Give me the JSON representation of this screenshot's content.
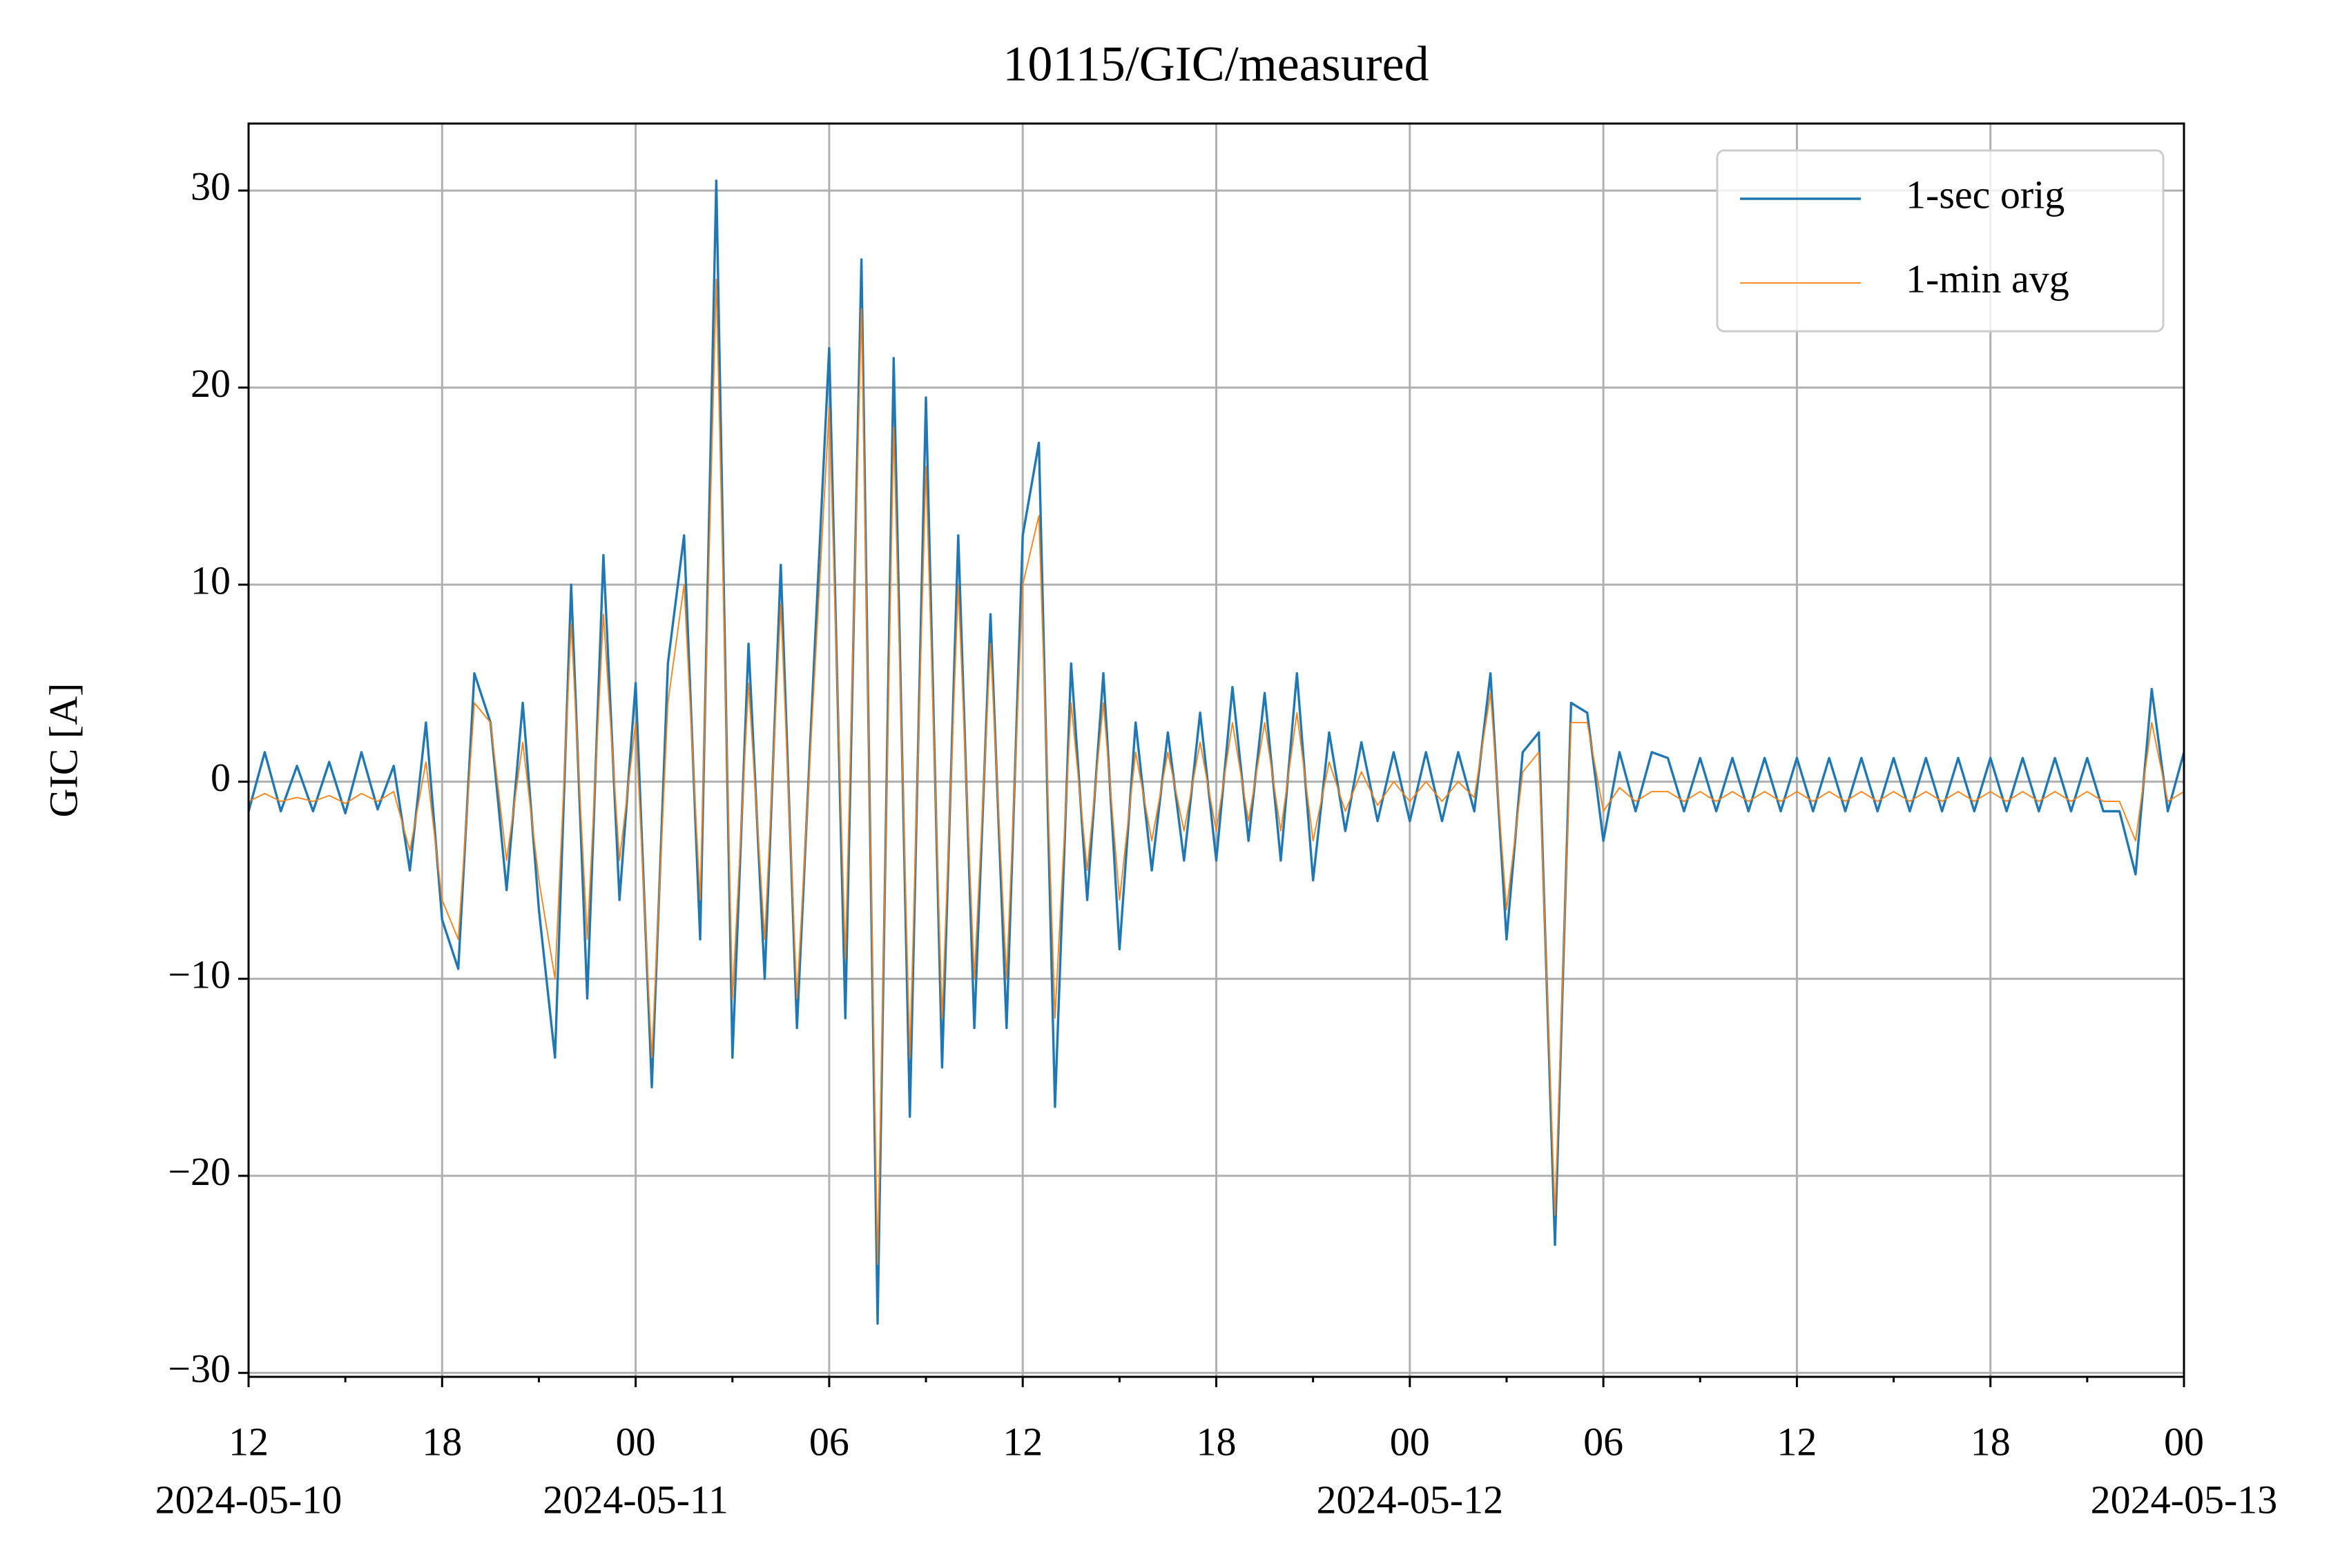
{
  "chart_data": {
    "type": "line",
    "title": "10115/GIC/measured",
    "y_label": "GIC [A]",
    "x": [
      "2024-05-10 12:00",
      "2024-05-10 12:30",
      "2024-05-10 13:00",
      "2024-05-10 13:30",
      "2024-05-10 14:00",
      "2024-05-10 14:30",
      "2024-05-10 15:00",
      "2024-05-10 15:30",
      "2024-05-10 16:00",
      "2024-05-10 16:30",
      "2024-05-10 17:00",
      "2024-05-10 17:30",
      "2024-05-10 18:00",
      "2024-05-10 18:30",
      "2024-05-10 19:00",
      "2024-05-10 19:30",
      "2024-05-10 20:00",
      "2024-05-10 20:30",
      "2024-05-10 21:00",
      "2024-05-10 21:30",
      "2024-05-10 22:00",
      "2024-05-10 22:30",
      "2024-05-10 23:00",
      "2024-05-10 23:30",
      "2024-05-11 00:00",
      "2024-05-11 00:30",
      "2024-05-11 01:00",
      "2024-05-11 01:30",
      "2024-05-11 02:00",
      "2024-05-11 02:30",
      "2024-05-11 03:00",
      "2024-05-11 03:30",
      "2024-05-11 04:00",
      "2024-05-11 04:30",
      "2024-05-11 05:00",
      "2024-05-11 05:30",
      "2024-05-11 06:00",
      "2024-05-11 06:30",
      "2024-05-11 07:00",
      "2024-05-11 07:30",
      "2024-05-11 08:00",
      "2024-05-11 08:30",
      "2024-05-11 09:00",
      "2024-05-11 09:30",
      "2024-05-11 10:00",
      "2024-05-11 10:30",
      "2024-05-11 11:00",
      "2024-05-11 11:30",
      "2024-05-11 12:00",
      "2024-05-11 12:30",
      "2024-05-11 13:00",
      "2024-05-11 13:30",
      "2024-05-11 14:00",
      "2024-05-11 14:30",
      "2024-05-11 15:00",
      "2024-05-11 15:30",
      "2024-05-11 16:00",
      "2024-05-11 16:30",
      "2024-05-11 17:00",
      "2024-05-11 17:30",
      "2024-05-11 18:00",
      "2024-05-11 18:30",
      "2024-05-11 19:00",
      "2024-05-11 19:30",
      "2024-05-11 20:00",
      "2024-05-11 20:30",
      "2024-05-11 21:00",
      "2024-05-11 21:30",
      "2024-05-11 22:00",
      "2024-05-11 22:30",
      "2024-05-11 23:00",
      "2024-05-11 23:30",
      "2024-05-12 00:00",
      "2024-05-12 00:30",
      "2024-05-12 01:00",
      "2024-05-12 01:30",
      "2024-05-12 02:00",
      "2024-05-12 02:30",
      "2024-05-12 03:00",
      "2024-05-12 03:30",
      "2024-05-12 04:00",
      "2024-05-12 04:30",
      "2024-05-12 05:00",
      "2024-05-12 05:30",
      "2024-05-12 06:00",
      "2024-05-12 06:30",
      "2024-05-12 07:00",
      "2024-05-12 07:30",
      "2024-05-12 08:00",
      "2024-05-12 08:30",
      "2024-05-12 09:00",
      "2024-05-12 09:30",
      "2024-05-12 10:00",
      "2024-05-12 10:30",
      "2024-05-12 11:00",
      "2024-05-12 11:30",
      "2024-05-12 12:00",
      "2024-05-12 12:30",
      "2024-05-12 13:00",
      "2024-05-12 13:30",
      "2024-05-12 14:00",
      "2024-05-12 14:30",
      "2024-05-12 15:00",
      "2024-05-12 15:30",
      "2024-05-12 16:00",
      "2024-05-12 16:30",
      "2024-05-12 17:00",
      "2024-05-12 17:30",
      "2024-05-12 18:00",
      "2024-05-12 18:30",
      "2024-05-12 19:00",
      "2024-05-12 19:30",
      "2024-05-12 20:00",
      "2024-05-12 20:30",
      "2024-05-12 21:00",
      "2024-05-12 21:30",
      "2024-05-12 22:00",
      "2024-05-12 22:30",
      "2024-05-12 23:00",
      "2024-05-12 23:30",
      "2024-05-13 00:00"
    ],
    "series": [
      {
        "name": "1-sec orig",
        "color": "#1f77b4",
        "width": 3.4,
        "values": [
          -1.5,
          1.5,
          -1.5,
          0.8,
          -1.5,
          1,
          -1.6,
          1.5,
          -1.4,
          0.8,
          -4.5,
          3,
          -7,
          -9.5,
          5.5,
          3,
          -5.5,
          4,
          -6.5,
          -14,
          10,
          -11,
          11.5,
          -6,
          5,
          -15.5,
          6,
          12.5,
          -8,
          30.5,
          -14,
          7,
          -10,
          11,
          -12.5,
          5,
          22,
          -12,
          26.5,
          -27.5,
          21.5,
          -17,
          19.5,
          -14.5,
          12.5,
          -12.5,
          8.5,
          -12.5,
          12.5,
          17.2,
          -16.5,
          6,
          -6,
          5.5,
          -8.5,
          3,
          -4.5,
          2.5,
          -4,
          3.5,
          -4,
          4.8,
          -3,
          4.5,
          -4,
          5.5,
          -5,
          2.5,
          -2.5,
          2,
          -2,
          1.5,
          -2,
          1.5,
          -2,
          1.5,
          -1.5,
          5.5,
          -8,
          1.5,
          2.5,
          -23.5,
          4,
          3.5,
          -3,
          1.5,
          -1.5,
          1.5,
          1.2,
          -1.5,
          1.2,
          -1.5,
          1.2,
          -1.5,
          1.2,
          -1.5,
          1.2,
          -1.5,
          1.2,
          -1.5,
          1.2,
          -1.5,
          1.2,
          -1.5,
          1.2,
          -1.5,
          1.2,
          -1.5,
          1.2,
          -1.5,
          1.2,
          -1.5,
          1.2,
          -1.5,
          1.2,
          -1.5,
          -1.5,
          -4.7,
          4.7,
          -1.5,
          1.5
        ]
      },
      {
        "name": "1-min avg",
        "color": "#ff7f0e",
        "width": 1.8,
        "values": [
          -1,
          -0.6,
          -1,
          -0.8,
          -1,
          -0.7,
          -1.1,
          -0.6,
          -1,
          -0.5,
          -3.5,
          1,
          -6,
          -8,
          4,
          3,
          -4,
          2,
          -5,
          -10,
          8,
          -8,
          8.5,
          -4,
          3,
          -14,
          4,
          10,
          -6,
          25.5,
          -11,
          5,
          -8,
          9,
          -11,
          4,
          19,
          -9,
          24,
          -24.5,
          18,
          -14,
          16,
          -12,
          10,
          -10,
          7,
          -10,
          10,
          13.5,
          -12,
          4,
          -4.5,
          4,
          -6,
          1.5,
          -3,
          1.5,
          -2.5,
          2,
          -2.5,
          3,
          -2,
          3,
          -2.5,
          3.5,
          -3,
          1,
          -1.5,
          0.5,
          -1.2,
          0,
          -1,
          0,
          -1,
          0,
          -0.8,
          4.5,
          -6.5,
          0.5,
          1.5,
          -22,
          3,
          3,
          -1.5,
          -0.3,
          -1,
          -0.5,
          -0.5,
          -1,
          -0.5,
          -1,
          -0.5,
          -1,
          -0.5,
          -1,
          -0.5,
          -1,
          -0.5,
          -1,
          -0.5,
          -1,
          -0.5,
          -1,
          -0.5,
          -1,
          -0.5,
          -1,
          -0.5,
          -1,
          -0.5,
          -1,
          -0.5,
          -1,
          -0.5,
          -1,
          -1,
          -3,
          3,
          -1,
          -0.5
        ]
      }
    ],
    "xlim": [
      "2024-05-10 12:00",
      "2024-05-13 00:00"
    ],
    "xticks": [
      {
        "value": "2024-05-10 12:00",
        "label": [
          "12",
          "2024-05-10"
        ]
      },
      {
        "value": "2024-05-10 18:00",
        "label": "18"
      },
      {
        "value": "2024-05-11 00:00",
        "label": [
          "00",
          "2024-05-11"
        ]
      },
      {
        "value": "2024-05-11 06:00",
        "label": "06"
      },
      {
        "value": "2024-05-11 12:00",
        "label": "12"
      },
      {
        "value": "2024-05-11 18:00",
        "label": "18"
      },
      {
        "value": "2024-05-12 00:00",
        "label": [
          "00",
          "2024-05-12"
        ]
      },
      {
        "value": "2024-05-12 06:00",
        "label": "06"
      },
      {
        "value": "2024-05-12 12:00",
        "label": "12"
      },
      {
        "value": "2024-05-12 18:00",
        "label": "18"
      },
      {
        "value": "2024-05-13 00:00",
        "label": [
          "00",
          "2024-05-13"
        ]
      }
    ],
    "xminorticks": [
      "2024-05-10 15:00",
      "2024-05-10 21:00",
      "2024-05-11 03:00",
      "2024-05-11 09:00",
      "2024-05-11 15:00",
      "2024-05-11 21:00",
      "2024-05-12 03:00",
      "2024-05-12 09:00",
      "2024-05-12 15:00",
      "2024-05-12 21:00"
    ],
    "ylim": [
      -30.2,
      33.4
    ],
    "yticks": [
      {
        "value": -30,
        "label": "−30"
      },
      {
        "value": -20,
        "label": "−20"
      },
      {
        "value": -10,
        "label": "−10"
      },
      0,
      10,
      20,
      30
    ],
    "grid": true,
    "legend": "upper right"
  }
}
